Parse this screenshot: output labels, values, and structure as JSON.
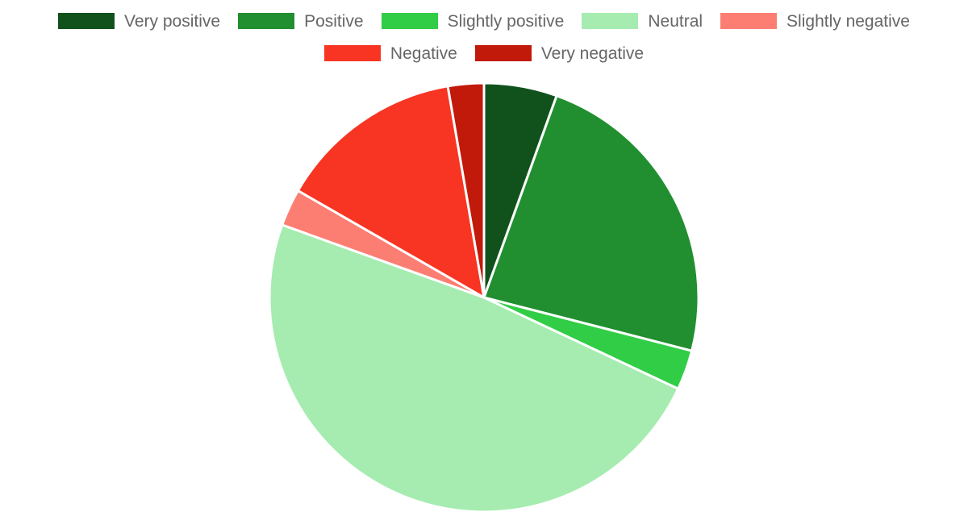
{
  "chart_data": {
    "type": "pie",
    "title": "",
    "legend_position": "top",
    "categories": [
      "Very positive",
      "Positive",
      "Slightly positive",
      "Neutral",
      "Slightly negative",
      "Negative",
      "Very negative"
    ],
    "values": [
      5.5,
      23.5,
      3.0,
      48.5,
      2.8,
      14.0,
      2.7
    ],
    "colors": [
      "#11521c",
      "#218f30",
      "#32cd46",
      "#a6ecb0",
      "#fc7e73",
      "#f73522",
      "#c1190a"
    ]
  }
}
